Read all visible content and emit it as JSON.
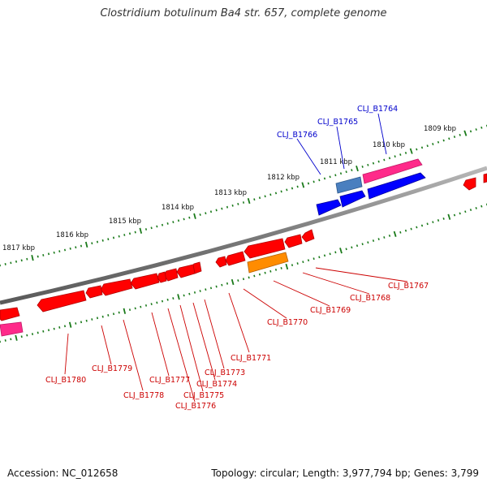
{
  "title": "Clostridium botulinum Ba4 str. 657, complete genome",
  "footer": {
    "accession": "Accession: NC_012658",
    "stats": "Topology: circular; Length: 3,977,794 bp; Genes: 3,799"
  },
  "kbp_labels": [
    "1809 kbp",
    "1810 kbp",
    "1811 kbp",
    "1812 kbp",
    "1813 kbp",
    "1814 kbp",
    "1815 kbp",
    "1816 kbp",
    "1817 kbp"
  ],
  "colors": {
    "backbone": "#808080",
    "tick": "#1a7a1a",
    "reverse_gene": "#ff0000",
    "forward_gene": "#0000ff",
    "forward_gene_light": "#4a7fbf",
    "rna_gene": "#ff2a8a",
    "pseudo_gene": "#ff8c00",
    "label_red": "#cc0000",
    "label_blue": "#0000cc"
  },
  "gene_labels_forward": [
    "CLJ_B1764",
    "CLJ_B1765",
    "CLJ_B1766"
  ],
  "gene_labels_reverse": [
    "CLJ_B1767",
    "CLJ_B1768",
    "CLJ_B1769",
    "CLJ_B1770",
    "CLJ_B1771",
    "CLJ_B1773",
    "CLJ_B1774",
    "CLJ_B1775",
    "CLJ_B1776",
    "CLJ_B1777",
    "CLJ_B1778",
    "CLJ_B1779",
    "CLJ_B1780"
  ]
}
